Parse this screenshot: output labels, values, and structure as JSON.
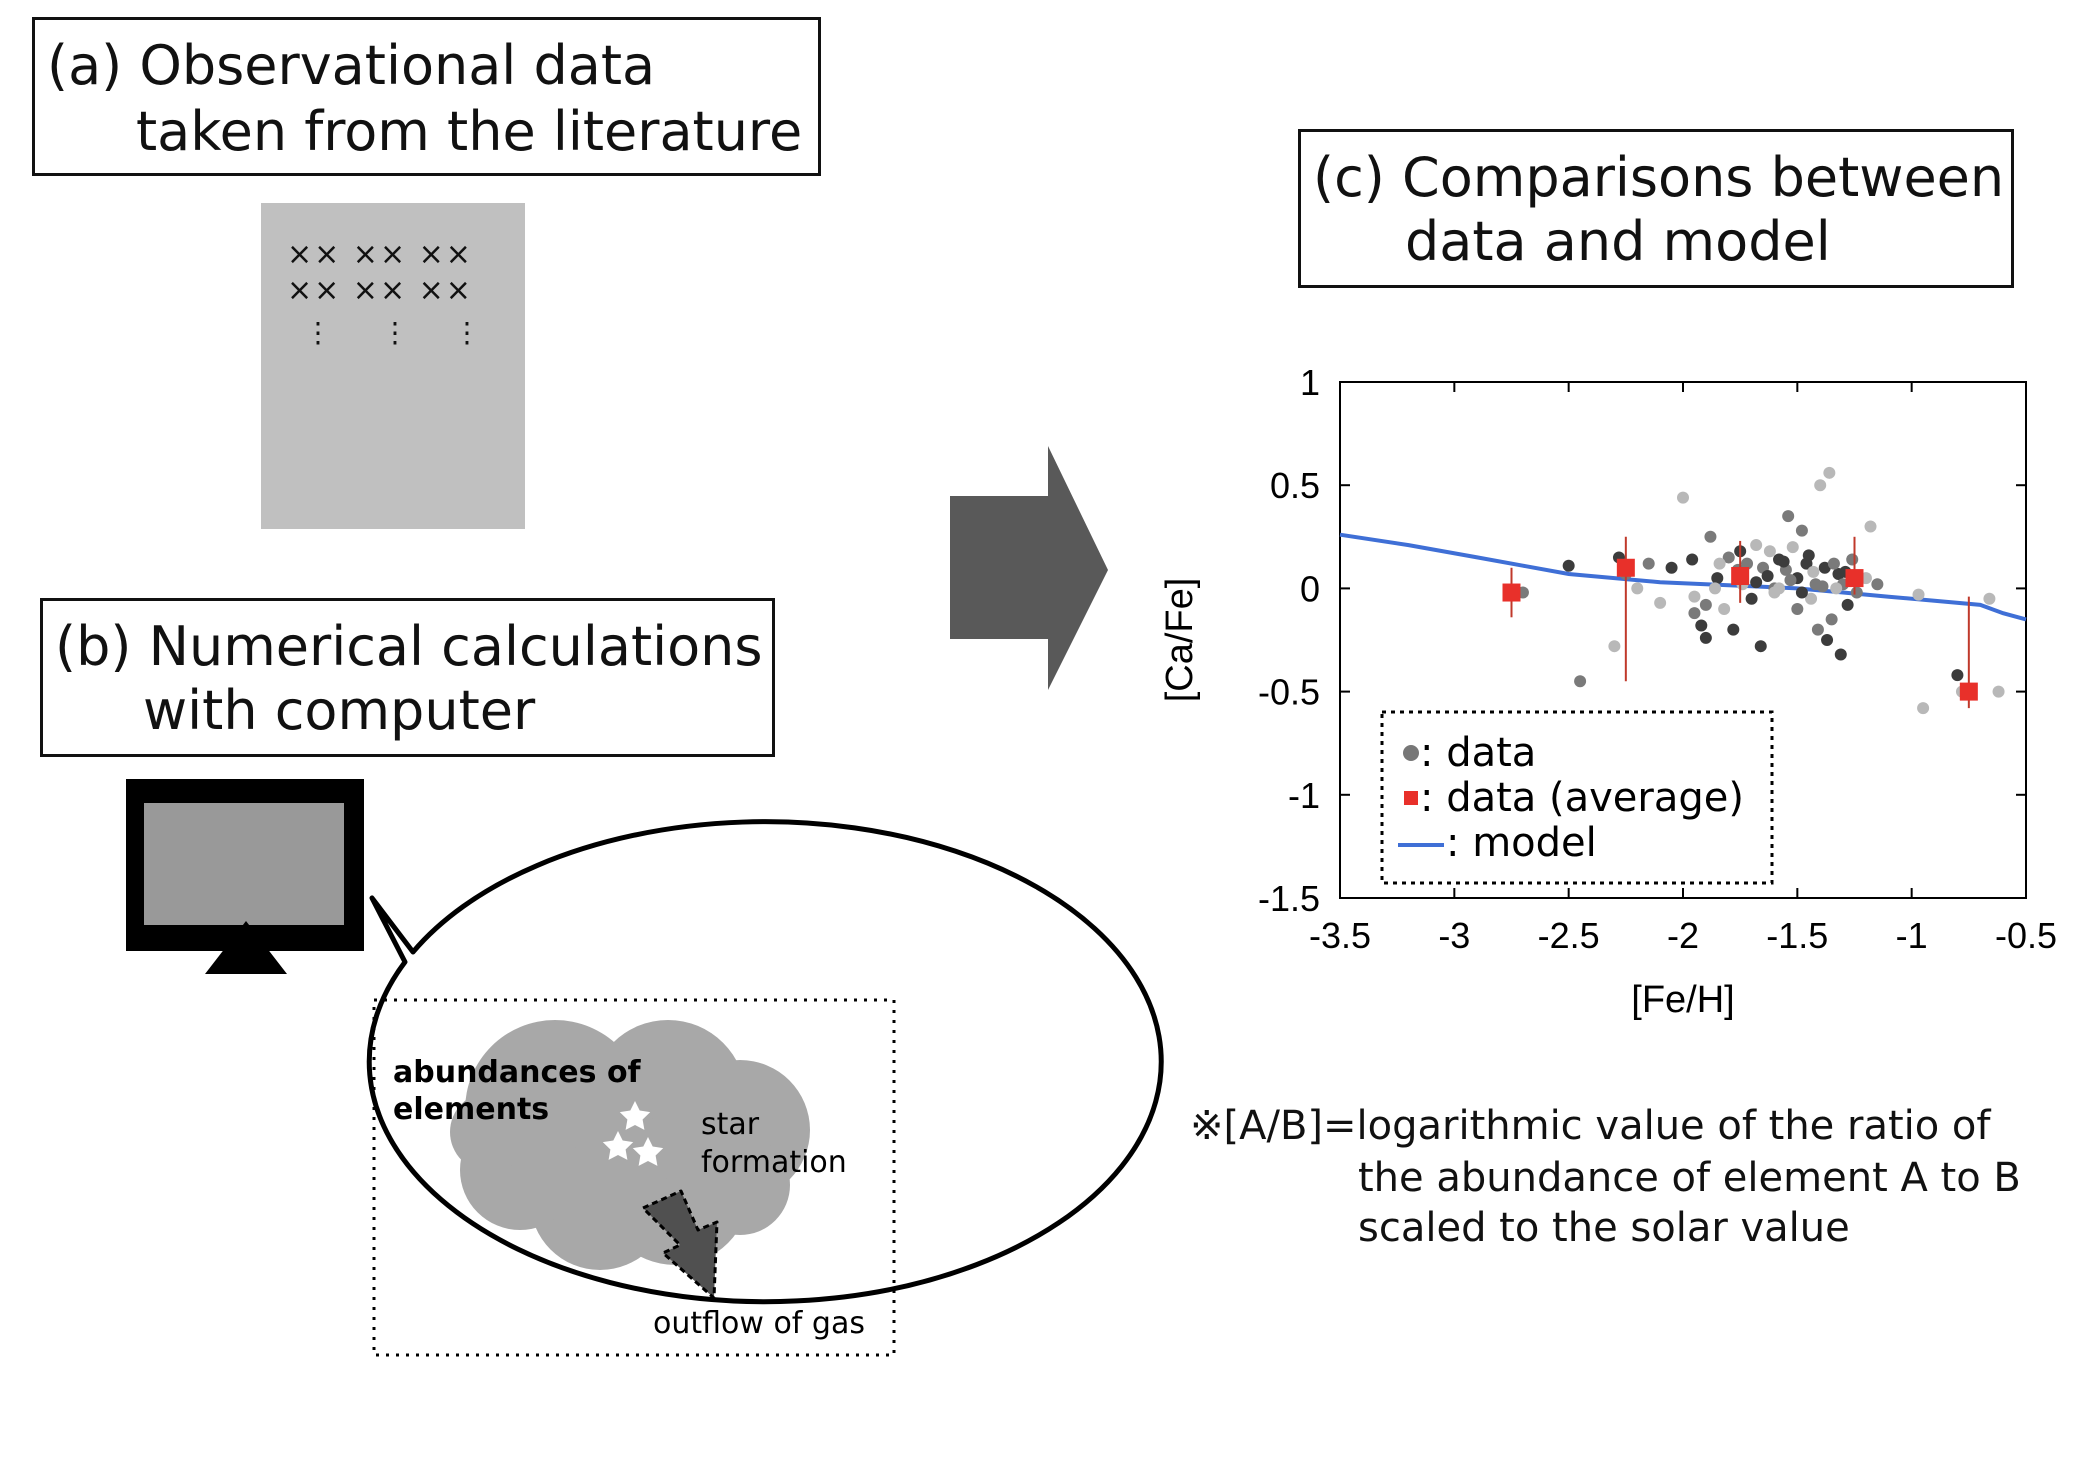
{
  "panel_a": {
    "title_line1": "(a) Observational data",
    "title_line2": "taken from the literature",
    "sheet_rows": [
      "××  ××  ××",
      "××  ××  ××"
    ],
    "sheet_dots": "⋮"
  },
  "panel_b": {
    "title_line1": "(b) Numerical calculations",
    "title_line2": "with computer",
    "label_abundances_line1": "abundances of",
    "label_abundances_line2": "elements",
    "label_star_line1": "star",
    "label_star_line2": "formation",
    "label_outflow": "outflow of gas"
  },
  "panel_c": {
    "title_line1": "(c) Comparisons between",
    "title_line2": "data and model"
  },
  "note": {
    "line1": "※[A/B]=logarithmic value of the ratio of",
    "line2": "the abundance of element A to B",
    "line3": "scaled to the solar value"
  },
  "colors": {
    "box_border": "#111111",
    "sheet": "#c0c0c0",
    "cloud": "#a8a8a8",
    "arrow": "#595959",
    "data_dark": "#3c3c3c",
    "data_mid": "#7a7a7a",
    "data_light": "#b8b8b8",
    "average": "#e8302a",
    "model": "#3f6fd6"
  },
  "chart_data": {
    "type": "scatter",
    "xlabel": "[Fe/H]",
    "ylabel": "[Ca/Fe]",
    "xlim": [
      -3.5,
      -0.5
    ],
    "ylim": [
      -1.5,
      1
    ],
    "xticks": [
      -3.5,
      -3,
      -2.5,
      -2,
      -1.5,
      -1,
      -0.5
    ],
    "xtick_labels": [
      "-3.5",
      "-3",
      "-2.5",
      "-2",
      "-1.5",
      "-1",
      "-0.5"
    ],
    "yticks": [
      -1.5,
      -1,
      -0.5,
      0,
      0.5,
      1
    ],
    "ytick_labels": [
      "-1.5",
      "-1",
      "-0.5",
      "0",
      "0.5",
      "1"
    ],
    "grid": false,
    "legend_position": "lower-left",
    "legend": [
      {
        "symbol": "circle",
        "label": ": data"
      },
      {
        "symbol": "square",
        "label": ": data (average)"
      },
      {
        "symbol": "line",
        "label": ": model"
      }
    ],
    "series": [
      {
        "name": "data",
        "marker": "circle",
        "points": [
          [
            -2.7,
            -0.02,
            2
          ],
          [
            -2.5,
            0.11,
            1
          ],
          [
            -2.45,
            -0.45,
            2
          ],
          [
            -2.3,
            -0.28,
            3
          ],
          [
            -2.28,
            0.15,
            1
          ],
          [
            -2.25,
            0.07,
            2
          ],
          [
            -2.15,
            0.12,
            2
          ],
          [
            -2.05,
            0.1,
            1
          ],
          [
            -2.0,
            0.44,
            3
          ],
          [
            -1.96,
            0.14,
            1
          ],
          [
            -1.95,
            -0.12,
            2
          ],
          [
            -1.92,
            -0.18,
            1
          ],
          [
            -1.9,
            -0.08,
            2
          ],
          [
            -1.9,
            -0.24,
            1
          ],
          [
            -1.88,
            0.25,
            2
          ],
          [
            -1.85,
            0.05,
            1
          ],
          [
            -1.82,
            -0.1,
            3
          ],
          [
            -1.8,
            0.15,
            2
          ],
          [
            -1.78,
            -0.2,
            1
          ],
          [
            -1.75,
            0.18,
            1
          ],
          [
            -1.72,
            0.12,
            2
          ],
          [
            -1.7,
            -0.05,
            1
          ],
          [
            -1.68,
            0.03,
            1
          ],
          [
            -1.65,
            0.1,
            2
          ],
          [
            -1.63,
            0.06,
            1
          ],
          [
            -1.6,
            0.0,
            2
          ],
          [
            -1.58,
            0.14,
            1
          ],
          [
            -1.55,
            0.09,
            2
          ],
          [
            -1.52,
            0.2,
            3
          ],
          [
            -1.5,
            0.05,
            1
          ],
          [
            -1.48,
            0.28,
            2
          ],
          [
            -1.45,
            0.16,
            1
          ],
          [
            -1.42,
            0.02,
            2
          ],
          [
            -1.4,
            0.5,
            3
          ],
          [
            -1.38,
            0.1,
            1
          ],
          [
            -1.36,
            0.56,
            3
          ],
          [
            -1.35,
            -0.15,
            2
          ],
          [
            -1.32,
            0.07,
            1
          ],
          [
            -1.3,
            0.02,
            2
          ],
          [
            -1.28,
            -0.08,
            1
          ],
          [
            -1.26,
            0.14,
            2
          ],
          [
            -1.2,
            0.05,
            3
          ],
          [
            -1.18,
            0.3,
            3
          ],
          [
            -1.15,
            0.02,
            2
          ],
          [
            -1.95,
            -0.04,
            3
          ],
          [
            -2.1,
            -0.07,
            3
          ],
          [
            -1.6,
            -0.02,
            3
          ],
          [
            -1.74,
            0.02,
            3
          ],
          [
            -1.66,
            -0.28,
            1
          ],
          [
            -1.58,
            0.0,
            3
          ],
          [
            -1.5,
            -0.1,
            2
          ],
          [
            -1.44,
            -0.05,
            3
          ],
          [
            -1.41,
            -0.2,
            2
          ],
          [
            -1.37,
            -0.25,
            1
          ],
          [
            -1.34,
            0.12,
            2
          ],
          [
            -1.31,
            -0.32,
            1
          ],
          [
            -1.62,
            0.18,
            3
          ],
          [
            -1.54,
            0.35,
            2
          ],
          [
            -1.46,
            0.12,
            1
          ],
          [
            -1.86,
            0.0,
            3
          ],
          [
            -2.2,
            0.0,
            3
          ],
          [
            -1.56,
            0.13,
            1
          ],
          [
            -1.53,
            0.04,
            2
          ],
          [
            -1.48,
            -0.02,
            1
          ],
          [
            -1.43,
            0.08,
            3
          ],
          [
            -1.39,
            0.01,
            2
          ],
          [
            -1.33,
            0.0,
            3
          ],
          [
            -1.29,
            0.08,
            1
          ],
          [
            -1.24,
            -0.02,
            2
          ],
          [
            -1.68,
            0.21,
            3
          ],
          [
            -1.76,
            0.09,
            2
          ],
          [
            -1.84,
            0.12,
            3
          ],
          [
            -0.95,
            -0.58,
            3
          ],
          [
            -0.97,
            -0.03,
            3
          ],
          [
            -0.78,
            -0.5,
            3
          ],
          [
            -0.66,
            -0.05,
            3
          ],
          [
            -0.62,
            -0.5,
            3
          ],
          [
            -0.8,
            -0.42,
            1
          ]
        ]
      },
      {
        "name": "data (average)",
        "marker": "square",
        "points": [
          [
            -2.75,
            -0.02
          ],
          [
            -2.25,
            0.1
          ],
          [
            -1.75,
            0.06
          ],
          [
            -1.25,
            0.05
          ],
          [
            -0.75,
            -0.5
          ]
        ],
        "error_low": [
          -0.14,
          -0.45,
          -0.07,
          -0.03,
          -0.58
        ],
        "error_high": [
          0.1,
          0.25,
          0.23,
          0.25,
          -0.04
        ]
      },
      {
        "name": "model",
        "type": "line",
        "x": [
          -3.5,
          -3.2,
          -2.9,
          -2.7,
          -2.5,
          -2.3,
          -2.1,
          -1.9,
          -1.7,
          -1.5,
          -1.3,
          -1.1,
          -0.9,
          -0.7,
          -0.6,
          -0.5
        ],
        "y": [
          0.26,
          0.21,
          0.15,
          0.11,
          0.07,
          0.05,
          0.03,
          0.02,
          0.01,
          0.0,
          -0.02,
          -0.04,
          -0.06,
          -0.08,
          -0.12,
          -0.15
        ]
      }
    ]
  }
}
